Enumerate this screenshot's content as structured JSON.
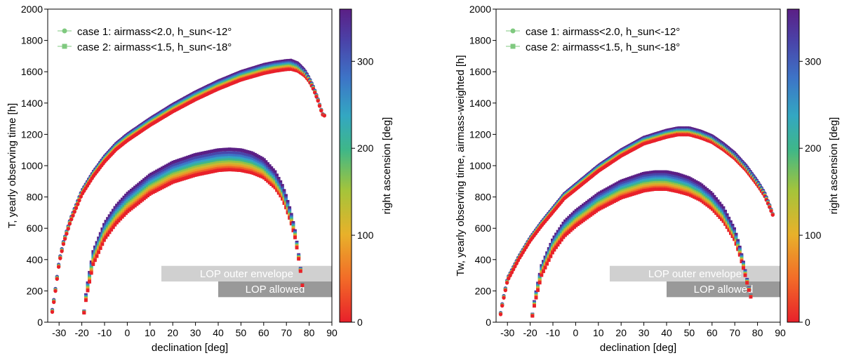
{
  "chart_data": [
    {
      "type": "scatter",
      "xlabel": "declination [deg]",
      "ylabel": "T, yearly observing time [h]",
      "xlim": [
        -35,
        90
      ],
      "ylim": [
        0,
        2000
      ],
      "xticks": [
        "-30",
        "-20",
        "-10",
        "0",
        "10",
        "20",
        "30",
        "40",
        "50",
        "60",
        "70",
        "80",
        "90"
      ],
      "yticks": [
        "0",
        "200",
        "400",
        "600",
        "800",
        "1000",
        "1200",
        "1400",
        "1600",
        "1800",
        "2000"
      ],
      "colorbar": {
        "label": "right ascension [deg]",
        "range": [
          0,
          360
        ],
        "ticks": [
          "0",
          "100",
          "200",
          "300"
        ]
      },
      "bands": [
        {
          "label": "LOP outer envelope",
          "x_start": 15,
          "x_end": 90,
          "y_range": [
            260,
            360
          ],
          "color": "#d0d0d0"
        },
        {
          "label": "LOP allowed",
          "x_start": 40,
          "x_end": 90,
          "y_range": [
            160,
            260
          ],
          "color": "#999999"
        }
      ],
      "series": [
        {
          "name": "case 1: airmass<2.0, h_sun<-12°",
          "marker": "circle",
          "legend_color": "#7fc97f",
          "dec": [
            -33,
            -32,
            -30,
            -28,
            -25,
            -20,
            -15,
            -10,
            -5,
            0,
            10,
            20,
            30,
            40,
            50,
            60,
            65,
            70,
            72,
            75,
            78,
            80,
            82,
            84,
            85,
            86,
            87
          ],
          "t_max": [
            80,
            170,
            390,
            520,
            660,
            840,
            960,
            1060,
            1140,
            1200,
            1300,
            1390,
            1470,
            1540,
            1600,
            1645,
            1660,
            1670,
            1672,
            1655,
            1610,
            1560,
            1500,
            1420,
            1370,
            1330,
            1320
          ],
          "spread": [
            15,
            15,
            15,
            15,
            18,
            25,
            30,
            35,
            38,
            40,
            42,
            45,
            48,
            50,
            52,
            55,
            55,
            55,
            55,
            50,
            35,
            20,
            15,
            10,
            8,
            5,
            3
          ]
        },
        {
          "name": "case 2: airmass<1.5, h_sun<-18°",
          "marker": "square",
          "legend_color": "#7fc97f",
          "dec": [
            -19,
            -18,
            -15,
            -10,
            -5,
            0,
            10,
            20,
            30,
            40,
            45,
            50,
            55,
            60,
            65,
            68,
            70,
            72,
            74,
            75,
            76,
            76.5,
            77
          ],
          "t_max": [
            70,
            200,
            450,
            630,
            740,
            820,
            940,
            1020,
            1070,
            1100,
            1105,
            1100,
            1080,
            1040,
            960,
            880,
            800,
            700,
            570,
            470,
            370,
            300,
            240
          ],
          "spread": [
            10,
            40,
            80,
            100,
            110,
            115,
            120,
            125,
            130,
            130,
            130,
            130,
            125,
            115,
            100,
            85,
            75,
            60,
            40,
            30,
            20,
            10,
            5
          ]
        }
      ]
    },
    {
      "type": "scatter",
      "xlabel": "declination [deg]",
      "ylabel": "Tw, yearly observing time, airmass-weighted [h]",
      "xlim": [
        -35,
        90
      ],
      "ylim": [
        0,
        2000
      ],
      "xticks": [
        "-30",
        "-20",
        "-10",
        "0",
        "10",
        "20",
        "30",
        "40",
        "50",
        "60",
        "70",
        "80",
        "90"
      ],
      "yticks": [
        "0",
        "200",
        "400",
        "600",
        "800",
        "1000",
        "1200",
        "1400",
        "1600",
        "1800",
        "2000"
      ],
      "colorbar": {
        "label": "right ascension [deg]",
        "range": [
          0,
          360
        ],
        "ticks": [
          "0",
          "100",
          "200",
          "300"
        ]
      },
      "bands": [
        {
          "label": "LOP outer envelope",
          "x_start": 15,
          "x_end": 90,
          "y_range": [
            260,
            360
          ],
          "color": "#d0d0d0"
        },
        {
          "label": "LOP allowed",
          "x_start": 40,
          "x_end": 90,
          "y_range": [
            160,
            260
          ],
          "color": "#999999"
        }
      ],
      "series": [
        {
          "name": "case 1: airmass<2.0, h_sun<-12°",
          "marker": "circle",
          "legend_color": "#7fc97f",
          "dec": [
            -33,
            -32,
            -30,
            -25,
            -20,
            -15,
            -10,
            -5,
            0,
            10,
            20,
            30,
            40,
            45,
            50,
            55,
            60,
            65,
            70,
            75,
            80,
            83,
            85,
            86,
            87
          ],
          "t_max": [
            60,
            140,
            280,
            420,
            540,
            640,
            730,
            820,
            880,
            1000,
            1100,
            1180,
            1225,
            1240,
            1240,
            1220,
            1190,
            1140,
            1080,
            1000,
            900,
            830,
            760,
            720,
            680
          ],
          "spread": [
            10,
            12,
            15,
            18,
            20,
            24,
            27,
            30,
            32,
            35,
            38,
            40,
            42,
            42,
            42,
            42,
            40,
            38,
            35,
            30,
            25,
            20,
            15,
            10,
            5
          ]
        },
        {
          "name": "case 2: airmass<1.5, h_sun<-18°",
          "marker": "square",
          "legend_color": "#7fc97f",
          "dec": [
            -19,
            -18,
            -15,
            -10,
            -5,
            0,
            10,
            20,
            30,
            35,
            40,
            45,
            50,
            55,
            60,
            65,
            70,
            72,
            74,
            75,
            76,
            77
          ],
          "t_max": [
            50,
            150,
            360,
            530,
            640,
            710,
            820,
            900,
            950,
            960,
            960,
            945,
            920,
            880,
            820,
            730,
            590,
            490,
            370,
            300,
            230,
            170
          ],
          "spread": [
            10,
            30,
            60,
            80,
            90,
            95,
            100,
            105,
            110,
            110,
            110,
            110,
            105,
            100,
            95,
            85,
            65,
            50,
            35,
            25,
            15,
            8
          ]
        }
      ]
    }
  ]
}
